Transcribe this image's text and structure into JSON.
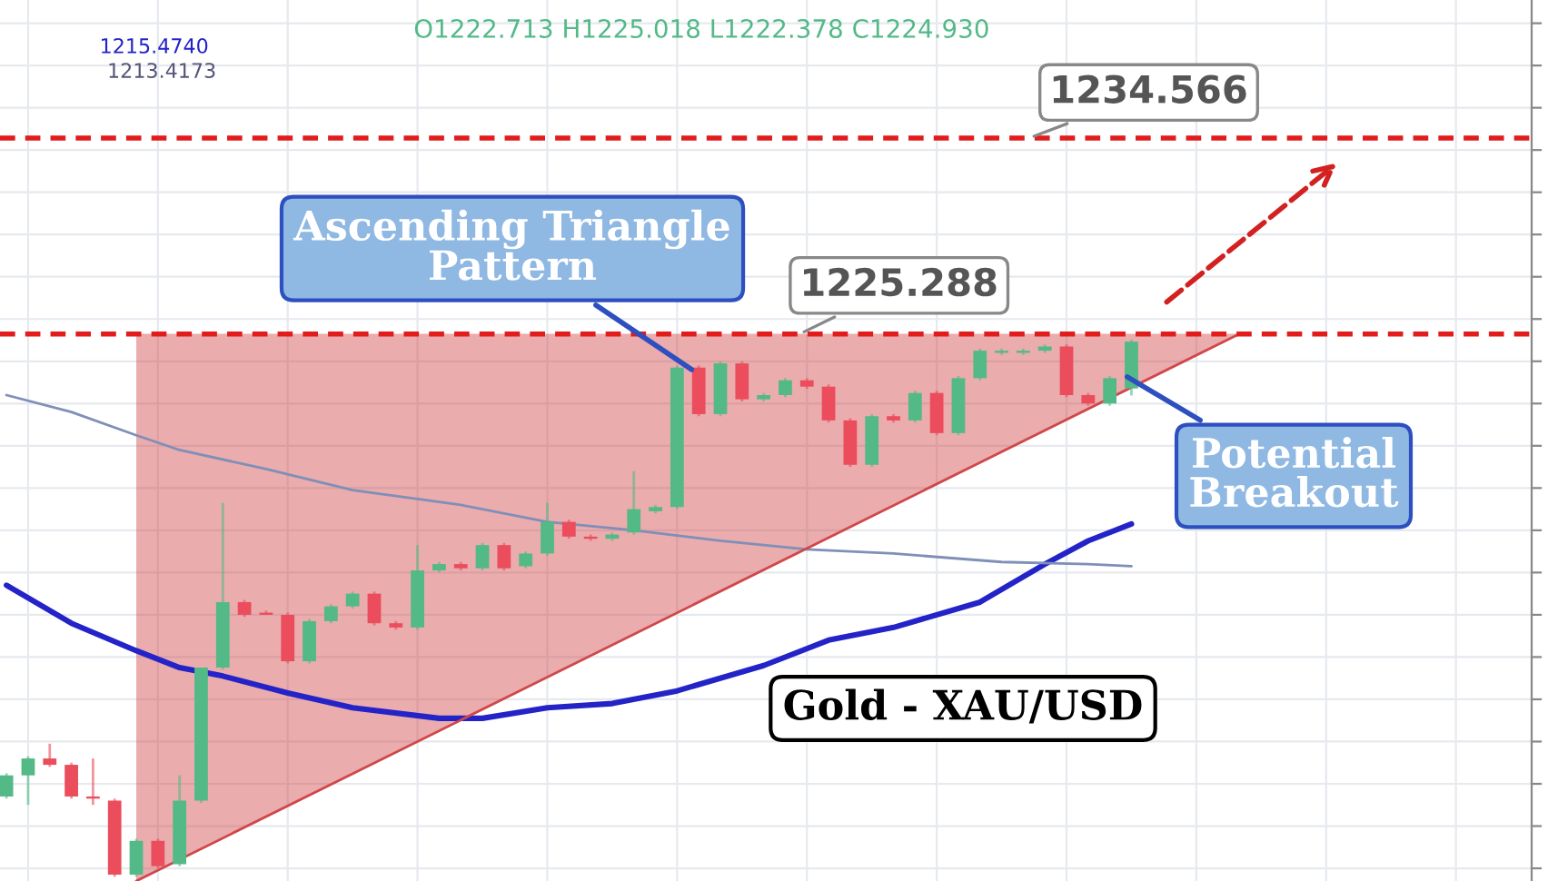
{
  "chart_data": {
    "type": "candlestick",
    "categories": [
      null,
      null,
      null,
      null,
      null,
      null,
      null,
      null,
      null,
      null,
      null,
      null,
      null,
      null,
      null,
      null,
      null,
      null,
      null,
      null,
      null,
      null,
      null,
      null,
      null,
      null,
      null,
      null,
      null,
      null,
      null,
      null,
      null,
      null,
      null,
      null,
      null,
      null,
      null,
      null,
      null,
      null,
      null,
      null,
      null,
      null,
      null,
      null,
      null,
      null,
      null,
      null,
      null,
      null,
      null,
      null,
      null,
      null,
      null,
      null,
      null,
      null,
      null,
      null,
      null,
      null,
      null,
      null,
      null,
      null,
      null
    ],
    "ohlc": [
      [
        1203.4,
        1204.5,
        1203.3,
        1204.4
      ],
      [
        1204.4,
        1205.3,
        1203.0,
        1205.2
      ],
      [
        1205.2,
        1205.9,
        1204.8,
        1204.9
      ],
      [
        1204.9,
        1205.0,
        1203.3,
        1203.4
      ],
      [
        1203.4,
        1205.2,
        1203.0,
        1203.3
      ],
      [
        1203.2,
        1203.3,
        1199.6,
        1199.7
      ],
      [
        1199.7,
        1201.4,
        1199.6,
        1201.3
      ],
      [
        1201.3,
        1201.4,
        1200.0,
        1200.1
      ],
      [
        1200.2,
        1204.4,
        1200.1,
        1203.2
      ],
      [
        1203.2,
        1209.5,
        1203.1,
        1209.5
      ],
      [
        1209.5,
        1217.3,
        1209.4,
        1212.6
      ],
      [
        1212.6,
        1212.7,
        1211.9,
        1212.0
      ],
      [
        1212.1,
        1212.2,
        1212.0,
        1212.0
      ],
      [
        1212.0,
        1212.1,
        1209.7,
        1209.8
      ],
      [
        1209.8,
        1211.8,
        1209.7,
        1211.7
      ],
      [
        1211.7,
        1212.5,
        1211.6,
        1212.4
      ],
      [
        1212.4,
        1213.1,
        1212.3,
        1213.0
      ],
      [
        1213.0,
        1213.1,
        1211.5,
        1211.6
      ],
      [
        1211.6,
        1211.7,
        1211.3,
        1211.4
      ],
      [
        1211.4,
        1215.3,
        1211.3,
        1214.1
      ],
      [
        1214.1,
        1214.5,
        1214.0,
        1214.4
      ],
      [
        1214.4,
        1214.5,
        1214.1,
        1214.2
      ],
      [
        1214.2,
        1215.4,
        1214.1,
        1215.3
      ],
      [
        1215.3,
        1215.4,
        1214.1,
        1214.2
      ],
      [
        1214.3,
        1215.0,
        1214.2,
        1214.9
      ],
      [
        1214.9,
        1217.3,
        1214.8,
        1216.4
      ],
      [
        1216.4,
        1216.5,
        1215.6,
        1215.7
      ],
      [
        1215.7,
        1215.8,
        1215.5,
        1215.6
      ],
      [
        1215.6,
        1215.9,
        1215.5,
        1215.8
      ],
      [
        1215.9,
        1218.8,
        1215.8,
        1217.0
      ],
      [
        1216.9,
        1217.2,
        1216.8,
        1217.1
      ],
      [
        1217.1,
        1223.8,
        1217.0,
        1223.7
      ],
      [
        1223.7,
        1223.8,
        1221.4,
        1221.5
      ],
      [
        1221.5,
        1224.0,
        1221.4,
        1223.9
      ],
      [
        1223.9,
        1224.0,
        1222.1,
        1222.2
      ],
      [
        1222.2,
        1222.5,
        1222.1,
        1222.4
      ],
      [
        1222.4,
        1223.2,
        1222.3,
        1223.1
      ],
      [
        1223.1,
        1223.2,
        1222.7,
        1222.8
      ],
      [
        1222.8,
        1222.9,
        1221.1,
        1221.2
      ],
      [
        1221.2,
        1221.3,
        1219.0,
        1219.1
      ],
      [
        1219.1,
        1221.5,
        1219.0,
        1221.4
      ],
      [
        1221.4,
        1221.5,
        1221.1,
        1221.2
      ],
      [
        1221.2,
        1222.6,
        1221.1,
        1222.5
      ],
      [
        1222.5,
        1222.6,
        1220.5,
        1220.6
      ],
      [
        1220.6,
        1223.3,
        1220.5,
        1223.2
      ],
      [
        1223.2,
        1224.6,
        1223.1,
        1224.5
      ],
      [
        1224.4,
        1224.6,
        1224.3,
        1224.5
      ],
      [
        1224.4,
        1224.6,
        1224.3,
        1224.5
      ],
      [
        1224.5,
        1224.8,
        1224.4,
        1224.7
      ],
      [
        1224.7,
        1224.8,
        1222.3,
        1222.4
      ],
      [
        1222.4,
        1222.5,
        1221.9,
        1222.0
      ],
      [
        1222.0,
        1223.3,
        1221.9,
        1223.2
      ],
      [
        1222.713,
        1225.018,
        1222.378,
        1224.93
      ],
      null,
      null,
      null,
      null,
      null,
      null,
      null,
      null,
      null,
      null,
      null,
      null,
      null,
      null,
      null,
      null,
      null,
      null
    ],
    "colors": [
      "#53b987",
      "#53b987",
      "#eb4d5c",
      "#eb4d5c",
      "#eb4d5c",
      "#eb4d5c",
      "#53b987",
      "#eb4d5c",
      "#53b987",
      "#53b987",
      "#53b987",
      "#eb4d5c",
      "#eb4d5c",
      "#eb4d5c",
      "#53b987",
      "#53b987",
      "#53b987",
      "#eb4d5c",
      "#eb4d5c",
      "#53b987",
      "#53b987",
      "#eb4d5c",
      "#53b987",
      "#eb4d5c",
      "#53b987",
      "#53b987",
      "#eb4d5c",
      "#eb4d5c",
      "#53b987",
      "#53b987",
      "#53b987",
      "#53b987",
      "#eb4d5c",
      "#53b987",
      "#eb4d5c",
      "#53b987",
      "#53b987",
      "#eb4d5c",
      "#eb4d5c",
      "#eb4d5c",
      "#53b987",
      "#eb4d5c",
      "#53b987",
      "#eb4d5c",
      "#53b987",
      "#53b987",
      "#53b987",
      "#53b987",
      "#53b987",
      "#eb4d5c",
      "#eb4d5c",
      "#53b987",
      "#53b987",
      null,
      null,
      null,
      null,
      null,
      null,
      null,
      null,
      null,
      null,
      null,
      null,
      null,
      null,
      null,
      null,
      null,
      null
    ],
    "series": [
      {
        "type": "line",
        "color": "#2323c8",
        "values": [
          1213.4,
          null,
          null,
          1211.6,
          null,
          null,
          1210.3,
          null,
          1209.5,
          null,
          1209.1,
          null,
          null,
          1208.3,
          null,
          null,
          1207.6,
          null,
          null,
          null,
          1207.1,
          null,
          1207.1,
          null,
          null,
          1207.6,
          null,
          null,
          1207.8,
          null,
          null,
          1208.4,
          null,
          null,
          null,
          1209.6,
          null,
          null,
          1210.8,
          null,
          null,
          1211.4,
          null,
          null,
          null,
          1212.6,
          null,
          null,
          1214.4,
          null,
          1215.5,
          null,
          1216.3,
          null,
          null,
          null,
          null,
          null,
          null,
          null,
          null,
          null,
          null,
          null,
          null,
          null,
          null,
          null,
          null,
          null,
          null
        ]
      },
      {
        "type": "line",
        "color": "#7f8fb8",
        "values": [
          1222.4,
          null,
          null,
          1221.6,
          null,
          null,
          1220.5,
          null,
          1219.8,
          null,
          null,
          null,
          1218.9,
          null,
          null,
          null,
          1217.9,
          null,
          null,
          null,
          null,
          1217.2,
          null,
          null,
          null,
          1216.4,
          null,
          null,
          null,
          1216.0,
          null,
          null,
          null,
          1215.5,
          null,
          null,
          null,
          1215.1,
          null,
          null,
          null,
          1214.9,
          null,
          null,
          null,
          null,
          1214.5,
          null,
          null,
          null,
          1214.4,
          null,
          1214.3,
          null,
          null,
          null,
          null,
          null,
          null,
          null,
          null,
          null,
          null,
          null,
          null,
          null,
          null,
          null,
          null,
          null,
          null
        ]
      },
      {
        "type": "line",
        "color": "#d0474a",
        "values": [
          null,
          null,
          null,
          null,
          null,
          null,
          1199.4,
          null,
          null,
          null,
          null,
          null,
          null,
          null,
          null,
          null,
          null,
          null,
          null,
          null,
          null,
          null,
          null,
          null,
          null,
          null,
          null,
          null,
          null,
          null,
          null,
          null,
          null,
          null,
          null,
          null,
          null,
          null,
          null,
          null,
          null,
          null,
          null,
          null,
          null,
          null,
          null,
          null,
          null,
          null,
          null,
          null,
          null,
          null,
          null,
          null,
          null,
          1225.3,
          null,
          null,
          null,
          null,
          null,
          null,
          null,
          null,
          null,
          null,
          null,
          null,
          null
        ],
        "lower": [
          null,
          null,
          null,
          null,
          null,
          null,
          1199.4,
          null,
          null,
          null,
          null,
          null,
          null,
          null,
          null,
          null,
          null,
          null,
          null,
          null,
          null,
          null,
          null,
          null,
          null,
          null,
          null,
          null,
          null,
          null,
          null,
          null,
          null,
          null,
          null,
          null,
          null,
          null,
          null,
          null,
          null,
          null,
          null,
          null,
          null,
          null,
          null,
          null,
          null,
          null,
          null,
          null,
          null,
          null,
          null,
          null,
          null,
          1225.3,
          null,
          null,
          null,
          null,
          null,
          null,
          null,
          null,
          null,
          null,
          null,
          null,
          null
        ],
        "upper": [
          null,
          null,
          null,
          null,
          null,
          null,
          1225.3,
          null,
          null,
          null,
          null,
          null,
          null,
          null,
          null,
          null,
          null,
          null,
          null,
          null,
          null,
          null,
          null,
          null,
          null,
          null,
          null,
          null,
          null,
          null,
          null,
          null,
          null,
          null,
          null,
          null,
          null,
          null,
          null,
          null,
          null,
          null,
          null,
          null,
          null,
          null,
          null,
          null,
          null,
          null,
          null,
          null,
          null,
          null,
          null,
          null,
          null,
          1225.3,
          null,
          null,
          null,
          null,
          null,
          null,
          null,
          null,
          null,
          null,
          null,
          null,
          null
        ]
      }
    ],
    "ref_lines": [
      {
        "axis": "y",
        "value": 1234.566,
        "label": "1234.566",
        "color": "#e21b1b",
        "line_style": "dashed"
      },
      {
        "axis": "y",
        "value": 1225.288,
        "label": "1225.288",
        "color": "#e21b1b",
        "line_style": "dashed"
      }
    ],
    "annotations": [
      "O1222.713 H1225.018 L1222.378 C1224.930",
      "1215.4740",
      "1213.4173",
      "Ascending Triangle\nPattern",
      "Potential\nBreakout",
      "Gold - XAU/USD"
    ],
    "ylim": [
      1199.4,
      1241.1
    ],
    "yticks": [
      1200,
      1202,
      1204,
      1206,
      1208,
      1210,
      1212,
      1214,
      1216,
      1218,
      1220,
      1222,
      1224,
      1226,
      1228,
      1230,
      1232,
      1234,
      1236,
      1238,
      1240
    ],
    "tick_labels": false,
    "grid": true
  }
}
